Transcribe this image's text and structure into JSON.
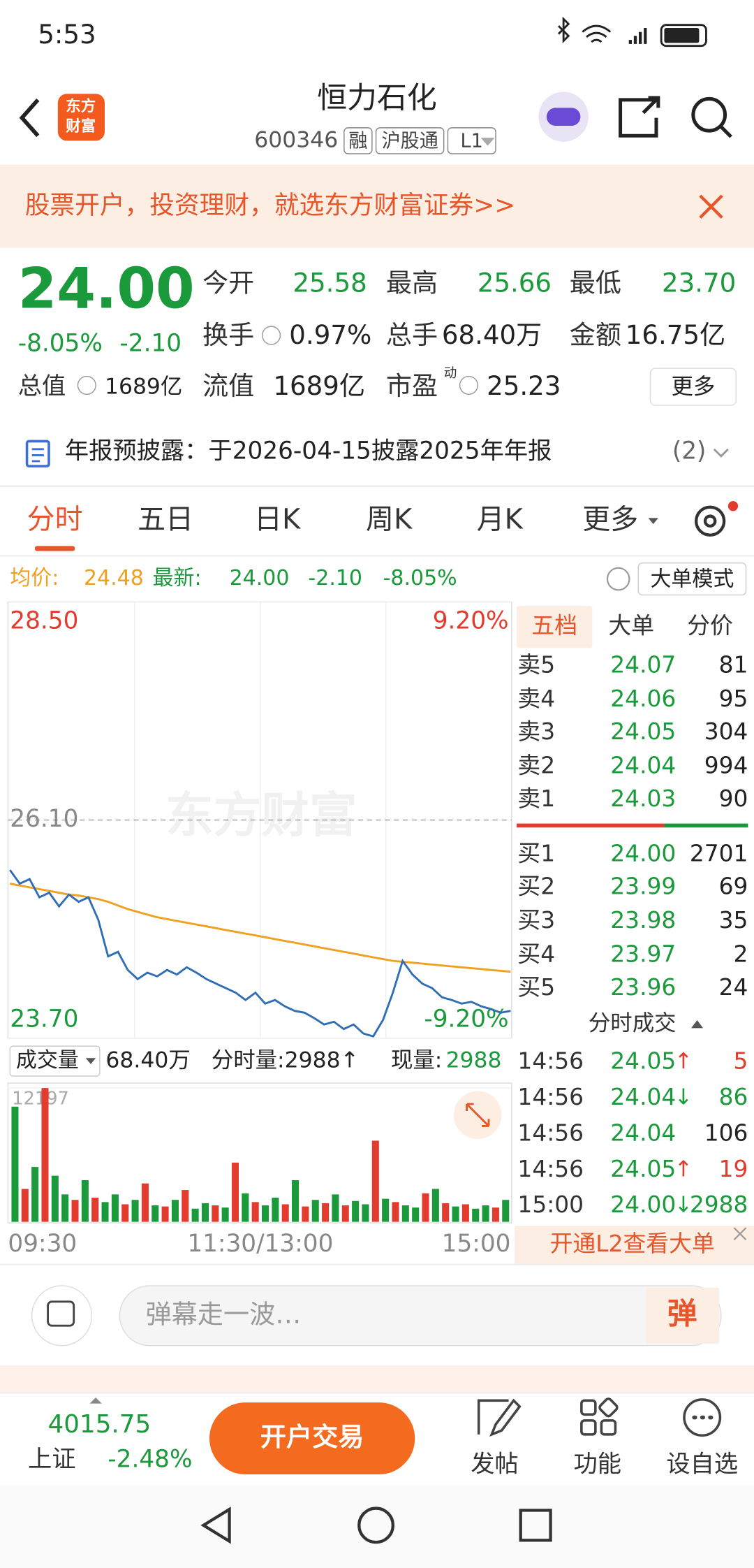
{
  "status_bar": {
    "time": "5:53"
  },
  "header": {
    "logo_text": [
      "东方",
      "财富"
    ],
    "title": "恒力石化",
    "code": "600346",
    "tags": [
      "融",
      "沪股通",
      "L1"
    ]
  },
  "banner": {
    "text": "股票开户，投资理财，就选东方财富证券>>"
  },
  "quote": {
    "price": "24.00",
    "change_pct": "-8.05%",
    "change": "-2.10",
    "row1": [
      {
        "label": "今开",
        "value": "25.58"
      },
      {
        "label": "最高",
        "value": "25.66"
      },
      {
        "label": "最低",
        "value": "23.70"
      }
    ],
    "row2": [
      {
        "label": "换手",
        "value": "0.97%"
      },
      {
        "label": "总手",
        "value": "68.40万"
      },
      {
        "label": "金额",
        "value": "16.75亿"
      }
    ],
    "row3": [
      {
        "label": "总值",
        "value": "1689亿"
      },
      {
        "label": "流值",
        "value": "1689亿"
      },
      {
        "label": "市盈",
        "sup": "动",
        "value": "25.23"
      }
    ],
    "more": "更多"
  },
  "notice": {
    "text": "年报预披露：于2026-04-15披露2025年年报",
    "count": "(2)"
  },
  "tabs": [
    "分时",
    "五日",
    "日K",
    "周K",
    "月K",
    "更多"
  ],
  "info_line": {
    "avg_label": "均价:",
    "avg": "24.48",
    "latest_label": "最新:",
    "latest": "24.00",
    "change": "-2.10",
    "change_pct": "-8.05%",
    "mode": "大单模式"
  },
  "chart_data": [
    {
      "type": "line",
      "watermark": "东方财富",
      "series": [
        {
          "color": "#2f6db5",
          "values": [
            25.55,
            25.4,
            25.45,
            25.25,
            25.3,
            25.15,
            25.28,
            25.2,
            25.25,
            25.0,
            24.6,
            24.65,
            24.45,
            24.35,
            24.42,
            24.38,
            24.45,
            24.4,
            24.48,
            24.42,
            24.35,
            24.3,
            24.25,
            24.2,
            24.12,
            24.2,
            24.08,
            24.12,
            24.05,
            24.0,
            23.98,
            23.92,
            23.85,
            23.88,
            23.8,
            23.85,
            23.75,
            23.72,
            23.9,
            24.2,
            24.55,
            24.4,
            24.3,
            24.25,
            24.15,
            24.12,
            24.08,
            24.1,
            24.05,
            24.02,
            23.98,
            24.0
          ]
        },
        {
          "color": "#f0a020",
          "values": [
            25.4,
            25.38,
            25.36,
            25.34,
            25.32,
            25.3,
            25.28,
            25.27,
            25.25,
            25.23,
            25.2,
            25.16,
            25.12,
            25.09,
            25.06,
            25.03,
            25.01,
            24.99,
            24.97,
            24.95,
            24.93,
            24.91,
            24.89,
            24.87,
            24.85,
            24.83,
            24.81,
            24.79,
            24.77,
            24.75,
            24.73,
            24.71,
            24.69,
            24.67,
            24.65,
            24.63,
            24.61,
            24.59,
            24.57,
            24.55,
            24.54,
            24.53,
            24.52,
            24.51,
            24.5,
            24.49,
            24.48,
            24.47,
            24.46,
            24.45,
            24.44,
            24.43
          ]
        }
      ],
      "ylim": [
        23.7,
        28.5
      ],
      "yticks": [
        {
          "value": 28.5,
          "label": "28.50"
        },
        {
          "value": 26.1,
          "label": "26.10"
        },
        {
          "value": 23.7,
          "label": "23.70"
        }
      ],
      "y2lim": [
        -9.2,
        9.2
      ],
      "y2ticks": [
        {
          "value": 9.2,
          "label": "9.20%"
        },
        {
          "value": -9.2,
          "label": "-9.20%"
        }
      ],
      "xtick_labels": [
        "09:30",
        "11:30/13:00",
        "15:00"
      ]
    },
    {
      "type": "bar",
      "values": [
        10500,
        3000,
        5000,
        12197,
        4200,
        2500,
        2000,
        3800,
        2200,
        1800,
        2500,
        1600,
        2000,
        3500,
        1500,
        1400,
        2000,
        2900,
        1200,
        1700,
        1500,
        1300,
        5400,
        2600,
        1800,
        1500,
        2200,
        1600,
        3800,
        1400,
        2000,
        1700,
        2500,
        1500,
        1900,
        1600,
        7400,
        2100,
        1800,
        1500,
        1300,
        2600,
        3000,
        1700,
        1400,
        1600,
        1200,
        1500,
        1300,
        2000
      ],
      "colors": [
        "#1a9a3a",
        "#e33b2e",
        "#1a9a3a",
        "#e33b2e",
        "#1a9a3a",
        "#1a9a3a",
        "#e33b2e",
        "#1a9a3a",
        "#e33b2e",
        "#1a9a3a",
        "#1a9a3a",
        "#e33b2e",
        "#1a9a3a",
        "#e33b2e",
        "#1a9a3a",
        "#e33b2e",
        "#1a9a3a",
        "#e33b2e",
        "#1a9a3a",
        "#1a9a3a",
        "#e33b2e",
        "#1a9a3a",
        "#e33b2e",
        "#1a9a3a",
        "#e33b2e",
        "#1a9a3a",
        "#1a9a3a",
        "#e33b2e",
        "#1a9a3a",
        "#e33b2e",
        "#1a9a3a",
        "#e33b2e",
        "#1a9a3a",
        "#e33b2e",
        "#1a9a3a",
        "#1a9a3a",
        "#e33b2e",
        "#1a9a3a",
        "#e33b2e",
        "#1a9a3a",
        "#1a9a3a",
        "#e33b2e",
        "#1a9a3a",
        "#e33b2e",
        "#1a9a3a",
        "#e33b2e",
        "#1a9a3a",
        "#1a9a3a",
        "#e33b2e",
        "#1a9a3a"
      ],
      "ylim": [
        0,
        12197
      ],
      "yticks": [
        12197
      ]
    }
  ],
  "volume_header": {
    "label": "成交量",
    "total": "68.40万",
    "minute": "分时量:2988↑",
    "current_label": "现量:",
    "current": "2988"
  },
  "order_book": {
    "tabs": [
      "五档",
      "大单",
      "分价"
    ],
    "asks": [
      {
        "label": "卖5",
        "price": "24.07",
        "volume": "81"
      },
      {
        "label": "卖4",
        "price": "24.06",
        "volume": "95"
      },
      {
        "label": "卖3",
        "price": "24.05",
        "volume": "304"
      },
      {
        "label": "卖2",
        "price": "24.04",
        "volume": "994"
      },
      {
        "label": "卖1",
        "price": "24.03",
        "volume": "90"
      }
    ],
    "bids": [
      {
        "label": "买1",
        "price": "24.00",
        "volume": "2701"
      },
      {
        "label": "买2",
        "price": "23.99",
        "volume": "69"
      },
      {
        "label": "买3",
        "price": "23.98",
        "volume": "35"
      },
      {
        "label": "买4",
        "price": "23.97",
        "volume": "2"
      },
      {
        "label": "买5",
        "price": "23.96",
        "volume": "24"
      }
    ],
    "trades_title": "分时成交",
    "trades": [
      {
        "time": "14:56",
        "price": "24.05",
        "arrow": "↑",
        "volume": "5"
      },
      {
        "time": "14:56",
        "price": "24.04",
        "arrow": "↓",
        "volume": "86"
      },
      {
        "time": "14:56",
        "price": "24.04",
        "arrow": "",
        "volume": "106"
      },
      {
        "time": "14:56",
        "price": "24.05",
        "arrow": "↑",
        "volume": "19"
      },
      {
        "time": "15:00",
        "price": "24.00",
        "arrow": "↓",
        "volume": "2988"
      }
    ],
    "l2_text": "开通L2查看大单"
  },
  "comment": {
    "placeholder": "弹幕走一波…",
    "button": "弹"
  },
  "bottom_bar": {
    "index_value": "4015.75",
    "index_name": "上证",
    "index_change": "-2.48%",
    "trade_button": "开户交易",
    "actions": [
      "发帖",
      "功能",
      "设自选"
    ]
  }
}
